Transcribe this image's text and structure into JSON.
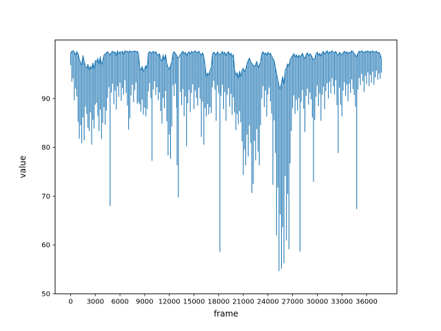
{
  "chart_data": {
    "type": "line",
    "title": "",
    "xlabel": "frame",
    "ylabel": "value",
    "xlim": [
      -1890,
      39690
    ],
    "ylim": [
      50,
      102
    ],
    "xticks": [
      0,
      3000,
      6000,
      9000,
      12000,
      15000,
      18000,
      21000,
      24000,
      27000,
      30000,
      33000,
      36000
    ],
    "yticks": [
      50,
      60,
      70,
      80,
      90
    ],
    "grid": false,
    "legend": "none",
    "line_color": "#1f77b4",
    "axes_color": "#000000",
    "background_color": "#ffffff",
    "series_name": "value",
    "envelope_note": "downsampled min/max envelope of the noisy series: [frame, min, max] per bucket",
    "envelope": [
      [
        0,
        96.9,
        99.3
      ],
      [
        150,
        93.5,
        99.7
      ],
      [
        300,
        94.2,
        99.8
      ],
      [
        450,
        89.7,
        99.5
      ],
      [
        600,
        92.1,
        98.9
      ],
      [
        750,
        90.5,
        99.6
      ],
      [
        900,
        85.3,
        99.2
      ],
      [
        1050,
        81.8,
        98.0
      ],
      [
        1200,
        84.6,
        97.4
      ],
      [
        1350,
        80.9,
        96.8
      ],
      [
        1500,
        86.2,
        98.8
      ],
      [
        1650,
        81.5,
        97.6
      ],
      [
        1800,
        88.4,
        96.5
      ],
      [
        1950,
        86.9,
        96.2
      ],
      [
        2100,
        84.1,
        97.0
      ],
      [
        2250,
        83.4,
        95.8
      ],
      [
        2400,
        87.2,
        96.6
      ],
      [
        2550,
        80.6,
        96.1
      ],
      [
        2700,
        85.7,
        97.3
      ],
      [
        2850,
        83.9,
        96.0
      ],
      [
        3000,
        88.8,
        97.8
      ],
      [
        3150,
        89.2,
        97.5
      ],
      [
        3300,
        86.5,
        98.2
      ],
      [
        3450,
        83.4,
        97.0
      ],
      [
        3600,
        87.8,
        98.6
      ],
      [
        3750,
        81.8,
        96.9
      ],
      [
        3900,
        85.1,
        97.7
      ],
      [
        4050,
        88.3,
        98.9
      ],
      [
        4200,
        84.7,
        99.1
      ],
      [
        4350,
        87.6,
        99.4
      ],
      [
        4500,
        90.2,
        99.6
      ],
      [
        4650,
        92.4,
        99.2
      ],
      [
        4800,
        68.0,
        98.8
      ],
      [
        4950,
        91.3,
        99.5
      ],
      [
        5100,
        93.1,
        99.7
      ],
      [
        5250,
        88.9,
        99.3
      ],
      [
        5400,
        91.7,
        99.6
      ],
      [
        5550,
        87.8,
        98.7
      ],
      [
        5700,
        92.6,
        99.8
      ],
      [
        5850,
        90.4,
        99.1
      ],
      [
        6000,
        93.3,
        99.6
      ],
      [
        6150,
        89.6,
        99.4
      ],
      [
        6300,
        92.2,
        99.7
      ],
      [
        6450,
        90.9,
        99.0
      ],
      [
        6600,
        93.8,
        99.8
      ],
      [
        6750,
        91.2,
        99.6
      ],
      [
        6900,
        88.6,
        99.7
      ],
      [
        7050,
        83.7,
        99.4
      ],
      [
        7200,
        86.0,
        99.8
      ],
      [
        7350,
        90.7,
        99.5
      ],
      [
        7500,
        92.9,
        99.7
      ],
      [
        7650,
        89.3,
        99.6
      ],
      [
        7800,
        91.8,
        99.8
      ],
      [
        7950,
        93.4,
        99.5
      ],
      [
        8100,
        89.0,
        99.7
      ],
      [
        8250,
        89.3,
        99.2
      ],
      [
        8400,
        88.9,
        96.3
      ],
      [
        8550,
        87.4,
        95.8
      ],
      [
        8700,
        89.8,
        96.6
      ],
      [
        8850,
        86.8,
        95.5
      ],
      [
        9000,
        88.2,
        96.1
      ],
      [
        9150,
        86.4,
        96.8
      ],
      [
        9300,
        87.9,
        96.0
      ],
      [
        9450,
        91.5,
        99.3
      ],
      [
        9600,
        93.2,
        99.6
      ],
      [
        9750,
        90.1,
        99.5
      ],
      [
        9900,
        77.3,
        99.2
      ],
      [
        10050,
        91.9,
        99.7
      ],
      [
        10200,
        93.6,
        99.4
      ],
      [
        10350,
        90.8,
        99.6
      ],
      [
        10500,
        92.4,
        99.1
      ],
      [
        10650,
        89.7,
        98.8
      ],
      [
        10800,
        91.3,
        99.2
      ],
      [
        10950,
        87.5,
        98.1
      ],
      [
        11100,
        84.9,
        97.6
      ],
      [
        11250,
        90.2,
        98.9
      ],
      [
        11400,
        88.1,
        97.9
      ],
      [
        11550,
        91.6,
        99.0
      ],
      [
        11700,
        85.4,
        97.2
      ],
      [
        11850,
        78.4,
        96.4
      ],
      [
        12000,
        82.7,
        95.9
      ],
      [
        12150,
        77.7,
        96.8
      ],
      [
        12300,
        84.3,
        97.5
      ],
      [
        12450,
        92.8,
        99.3
      ],
      [
        12600,
        90.6,
        99.6
      ],
      [
        12750,
        93.1,
        99.2
      ],
      [
        12900,
        88.2,
        98.9
      ],
      [
        12950,
        76.4,
        98.6
      ],
      [
        13100,
        69.8,
        98.3
      ],
      [
        13350,
        91.4,
        99.0
      ],
      [
        13500,
        88.7,
        99.4
      ],
      [
        13650,
        92.0,
        99.7
      ],
      [
        13800,
        86.4,
        99.1
      ],
      [
        13950,
        90.5,
        99.5
      ],
      [
        14100,
        80.3,
        98.8
      ],
      [
        14250,
        89.1,
        99.3
      ],
      [
        14400,
        91.8,
        99.6
      ],
      [
        14550,
        87.3,
        99.0
      ],
      [
        14700,
        91.2,
        99.7
      ],
      [
        14850,
        93.0,
        99.4
      ],
      [
        15000,
        87.9,
        99.6
      ],
      [
        15150,
        91.7,
        99.8
      ],
      [
        15300,
        90.2,
        99.3
      ],
      [
        15450,
        88.6,
        99.5
      ],
      [
        15600,
        92.3,
        99.7
      ],
      [
        15750,
        90.0,
        99.2
      ],
      [
        15900,
        82.2,
        98.9
      ],
      [
        16050,
        89.4,
        99.4
      ],
      [
        16200,
        80.6,
        98.6
      ],
      [
        16350,
        88.1,
        96.7
      ],
      [
        16500,
        86.4,
        94.5
      ],
      [
        16650,
        88.9,
        95.2
      ],
      [
        16800,
        86.8,
        94.8
      ],
      [
        16950,
        88.3,
        95.7
      ],
      [
        17100,
        87.1,
        96.3
      ],
      [
        17250,
        92.4,
        99.1
      ],
      [
        17400,
        93.7,
        99.5
      ],
      [
        17550,
        91.9,
        99.3
      ],
      [
        17700,
        85.5,
        98.8
      ],
      [
        17850,
        92.8,
        99.6
      ],
      [
        18000,
        91.1,
        99.2
      ],
      [
        18150,
        58.6,
        98.9
      ],
      [
        18300,
        90.6,
        99.3
      ],
      [
        18450,
        92.9,
        99.7
      ],
      [
        18600,
        87.9,
        99.1
      ],
      [
        18750,
        91.4,
        99.5
      ],
      [
        18900,
        85.5,
        98.7
      ],
      [
        19050,
        90.8,
        99.4
      ],
      [
        19200,
        92.2,
        99.6
      ],
      [
        19350,
        88.4,
        98.9
      ],
      [
        19500,
        91.0,
        99.3
      ],
      [
        19650,
        86.7,
        98.5
      ],
      [
        19800,
        90.3,
        99.0
      ],
      [
        19950,
        87.2,
        95.9
      ],
      [
        20100,
        83.6,
        94.7
      ],
      [
        20250,
        86.9,
        95.3
      ],
      [
        20400,
        84.8,
        94.1
      ],
      [
        20550,
        87.5,
        95.6
      ],
      [
        20700,
        85.2,
        94.4
      ],
      [
        20850,
        81.3,
        95.8
      ],
      [
        21000,
        74.4,
        96.2
      ],
      [
        21150,
        79.6,
        95.4
      ],
      [
        21300,
        76.4,
        96.0
      ],
      [
        21450,
        82.7,
        97.1
      ],
      [
        21600,
        78.2,
        97.8
      ],
      [
        21750,
        84.5,
        98.3
      ],
      [
        21900,
        80.9,
        97.5
      ],
      [
        22050,
        70.7,
        97.2
      ],
      [
        22200,
        72.6,
        96.8
      ],
      [
        22350,
        81.4,
        96.5
      ],
      [
        22500,
        77.4,
        97.0
      ],
      [
        22650,
        83.8,
        97.6
      ],
      [
        22800,
        79.2,
        96.3
      ],
      [
        22950,
        76.4,
        96.9
      ],
      [
        23100,
        84.6,
        97.4
      ],
      [
        23250,
        90.1,
        99.2
      ],
      [
        23400,
        92.6,
        99.6
      ],
      [
        23550,
        88.3,
        99.0
      ],
      [
        23700,
        91.7,
        99.4
      ],
      [
        23850,
        86.4,
        98.8
      ],
      [
        24000,
        90.9,
        99.5
      ],
      [
        24150,
        92.3,
        99.1
      ],
      [
        24300,
        89.5,
        99.3
      ],
      [
        24450,
        87.0,
        98.7
      ],
      [
        24600,
        72.4,
        98.2
      ],
      [
        24750,
        85.6,
        97.8
      ],
      [
        24900,
        78.9,
        96.4
      ],
      [
        25050,
        62.0,
        95.1
      ],
      [
        25200,
        71.8,
        93.8
      ],
      [
        25350,
        54.7,
        92.6
      ],
      [
        25500,
        66.3,
        91.9
      ],
      [
        25650,
        55.2,
        93.2
      ],
      [
        25800,
        63.7,
        94.5
      ],
      [
        25950,
        56.3,
        92.8
      ],
      [
        26100,
        74.2,
        95.7
      ],
      [
        26250,
        61.0,
        96.3
      ],
      [
        26400,
        70.5,
        97.1
      ],
      [
        26550,
        59.2,
        96.6
      ],
      [
        26700,
        76.8,
        97.9
      ],
      [
        26850,
        83.4,
        98.4
      ],
      [
        27000,
        88.1,
        98.8
      ],
      [
        27150,
        90.7,
        99.2
      ],
      [
        27300,
        86.9,
        98.5
      ],
      [
        27450,
        89.8,
        99.0
      ],
      [
        27600,
        87.6,
        98.3
      ],
      [
        27750,
        90.2,
        98.9
      ],
      [
        27900,
        58.7,
        98.6
      ],
      [
        28050,
        89.4,
        98.8
      ],
      [
        28200,
        91.8,
        99.3
      ],
      [
        28350,
        88.0,
        98.6
      ],
      [
        28500,
        83.2,
        98.1
      ],
      [
        28650,
        90.6,
        99.0
      ],
      [
        28800,
        92.1,
        99.4
      ],
      [
        28950,
        88.8,
        98.7
      ],
      [
        29100,
        91.3,
        99.2
      ],
      [
        29250,
        89.9,
        98.9
      ],
      [
        29400,
        86.2,
        98.4
      ],
      [
        29550,
        73.0,
        97.9
      ],
      [
        29700,
        85.7,
        98.2
      ],
      [
        29850,
        90.4,
        99.1
      ],
      [
        30000,
        92.7,
        99.5
      ],
      [
        30150,
        88.5,
        98.8
      ],
      [
        30300,
        91.1,
        99.3
      ],
      [
        30450,
        85.5,
        98.6
      ],
      [
        30600,
        90.8,
        99.4
      ],
      [
        30750,
        92.5,
        99.7
      ],
      [
        30900,
        87.9,
        99.0
      ],
      [
        31050,
        91.6,
        99.5
      ],
      [
        31200,
        93.2,
        99.8
      ],
      [
        31350,
        90.1,
        99.2
      ],
      [
        31500,
        93.5,
        99.6
      ],
      [
        31650,
        91.1,
        99.4
      ],
      [
        31800,
        94.2,
        99.8
      ],
      [
        31950,
        92.6,
        99.5
      ],
      [
        32100,
        90.9,
        99.3
      ],
      [
        32250,
        93.8,
        99.7
      ],
      [
        32400,
        88.7,
        99.1
      ],
      [
        32550,
        78.9,
        98.8
      ],
      [
        32700,
        92.3,
        99.5
      ],
      [
        32850,
        88.8,
        99.2
      ],
      [
        33000,
        86.4,
        98.9
      ],
      [
        33150,
        91.7,
        99.4
      ],
      [
        33300,
        93.4,
        99.7
      ],
      [
        33450,
        90.6,
        99.3
      ],
      [
        33600,
        92.9,
        99.6
      ],
      [
        33750,
        89.5,
        99.1
      ],
      [
        33900,
        93.1,
        99.5
      ],
      [
        34050,
        91.2,
        99.4
      ],
      [
        34200,
        94.0,
        99.8
      ],
      [
        34350,
        92.0,
        99.6
      ],
      [
        34500,
        90.8,
        99.2
      ],
      [
        34650,
        88.4,
        98.9
      ],
      [
        34800,
        67.4,
        98.5
      ],
      [
        34950,
        91.9,
        99.3
      ],
      [
        35100,
        94.3,
        99.7
      ],
      [
        35250,
        92.8,
        99.5
      ],
      [
        35400,
        95.1,
        99.8
      ],
      [
        35550,
        93.6,
        99.6
      ],
      [
        35700,
        91.4,
        99.3
      ],
      [
        35850,
        94.7,
        99.7
      ],
      [
        36000,
        93.0,
        99.5
      ],
      [
        36150,
        95.4,
        99.8
      ],
      [
        36300,
        92.6,
        99.4
      ],
      [
        36450,
        94.9,
        99.7
      ],
      [
        36600,
        93.3,
        99.5
      ],
      [
        36750,
        95.6,
        99.8
      ],
      [
        36900,
        92.9,
        99.4
      ],
      [
        37050,
        94.4,
        99.6
      ],
      [
        37200,
        95.8,
        99.7
      ],
      [
        37350,
        93.9,
        99.3
      ],
      [
        37500,
        95.2,
        99.5
      ],
      [
        37650,
        94.1,
        99.0
      ],
      [
        37800,
        95.4,
        98.2
      ]
    ]
  }
}
